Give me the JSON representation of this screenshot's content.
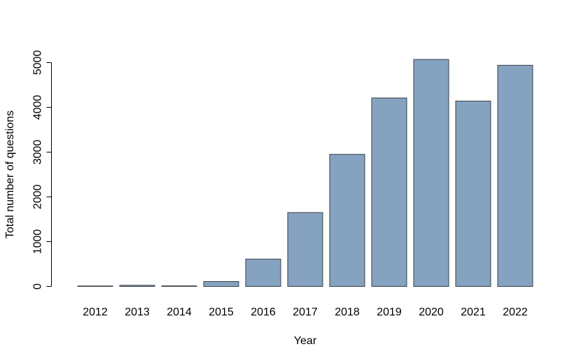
{
  "chart_data": {
    "type": "bar",
    "categories": [
      "2012",
      "2013",
      "2014",
      "2015",
      "2016",
      "2017",
      "2018",
      "2019",
      "2020",
      "2021",
      "2022"
    ],
    "values": [
      10,
      25,
      12,
      110,
      610,
      1650,
      2950,
      4210,
      5070,
      4140,
      4940
    ],
    "xlabel": "Year",
    "ylabel": "Total number of questions",
    "yticks": [
      0,
      1000,
      2000,
      3000,
      4000,
      5000
    ],
    "ylim": [
      0,
      5000
    ],
    "grid": false,
    "legend": "none",
    "bar_color": "#85a2c1",
    "bar_border_color": "#3a3f47"
  }
}
